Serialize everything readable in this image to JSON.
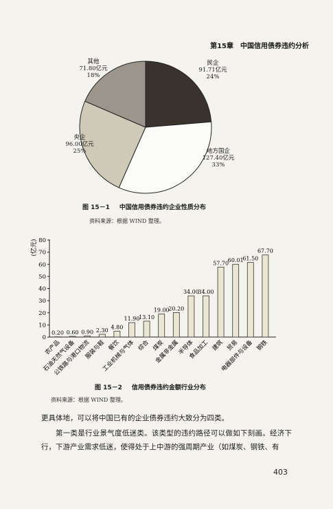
{
  "header": {
    "chapter": "第15章",
    "title": "中国信用债券违约分析"
  },
  "figure1": {
    "caption_num": "图 15－1",
    "caption_text": "中国信用债券违约企业性质分布",
    "source": "资料来源：根据 WIND 整理。"
  },
  "figure2": {
    "caption_num": "图 15－2",
    "caption_text": "信用债券违约金额行业分布",
    "source": "资料来源：根据 WIND 整理。"
  },
  "chart_data": [
    {
      "type": "pie",
      "slices": [
        {
          "name": "民企",
          "value_label": "91.71亿元",
          "pct_label": "24%",
          "value": 91.71,
          "color": "#3a322c"
        },
        {
          "name": "地方国企",
          "value_label": "127.40亿元",
          "pct_label": "33%",
          "value": 127.4,
          "color": "#fbfbf8"
        },
        {
          "name": "央企",
          "value_label": "96.00亿元",
          "pct_label": "25%",
          "value": 96.0,
          "color": "#cfc9b8"
        },
        {
          "name": "其他",
          "value_label": "71.80亿元",
          "pct_label": "18%",
          "value": 71.8,
          "color": "#9c958c"
        }
      ]
    },
    {
      "type": "bar",
      "ylabel": "(亿元)",
      "ylim": [
        0,
        80
      ],
      "yticks": [
        "0",
        "10",
        "20",
        "30",
        "40",
        "50",
        "60",
        "70",
        "80"
      ],
      "categories": [
        "农产品",
        "石油天然气设备",
        "公铁路与港口物流",
        "服装与鞋",
        "餐饮",
        "工业机械与气体",
        "综合",
        "煤炭",
        "金属非金属",
        "半导体",
        "食品加工",
        "建筑",
        "贸易",
        "电器部件与设备",
        "钢铁"
      ],
      "values": [
        0.2,
        0.6,
        0.9,
        2.3,
        4.8,
        11.9,
        13.1,
        19.0,
        20.2,
        34.0,
        34.0,
        57.7,
        60.01,
        61.5,
        67.7
      ],
      "value_labels": [
        "0.20",
        "0.60",
        "0.90",
        "2.30",
        "4.80",
        "11.90",
        "13.10",
        "19.00",
        "20.20",
        "34.00",
        "34.00",
        "57.70",
        "60.01",
        "61.50",
        "67.70"
      ],
      "bar_color": "#ebe6d2"
    }
  ],
  "body": {
    "para1": "更具体地，可以将中国已有的企业债券违约大致分为四类。",
    "para2": "第一类是行业景气度低迷类。该类型的违约路径可以做如下刻画。经济下行，下游产业需求低迷，使得处于上中游的强周期产业（如煤炭、钢铁、有"
  },
  "page_number": "403"
}
